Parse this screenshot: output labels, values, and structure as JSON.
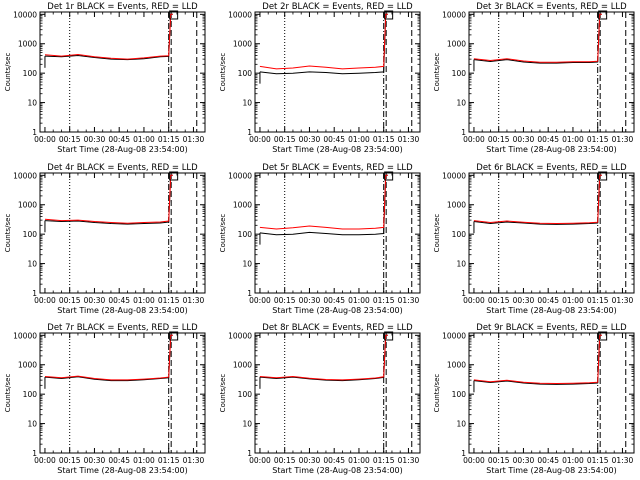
{
  "colors": {
    "background": "#ffffff",
    "axes": "#000000",
    "events": "#000000",
    "lld": "#ff0000"
  },
  "shared": {
    "xlabel": "Start Time (28-Aug-08 23:54:00)",
    "ylabel": "Counts/sec",
    "x_tick_labels": [
      "00:00",
      "00:15",
      "00:30",
      "00:45",
      "01:00",
      "01:15",
      "01:30"
    ],
    "y_tick_labels": [
      "1",
      "10",
      "100",
      "1000",
      "10000"
    ]
  },
  "chart_data": [
    {
      "type": "line",
      "title": "Det 1r BLACK = Events, RED = LLD",
      "xlabel": "Start Time (28-Aug-08 23:54:00)",
      "ylabel": "Counts/sec",
      "x_unit": "minutes",
      "xlim": [
        -3,
        97
      ],
      "ylim": [
        1,
        12000
      ],
      "y_scale": "log",
      "x": [
        0,
        10,
        20,
        30,
        40,
        50,
        60,
        70,
        75
      ],
      "series": [
        {
          "name": "Events",
          "values": [
            380,
            360,
            400,
            340,
            300,
            290,
            310,
            360,
            370
          ],
          "spike_to": 10000
        },
        {
          "name": "LLD",
          "values": [
            420,
            380,
            430,
            360,
            320,
            300,
            330,
            380,
            390
          ],
          "spike_to": 10000
        }
      ],
      "marker_x": 78,
      "vlines": [
        {
          "x": 15,
          "style": "dotted"
        },
        {
          "x": 75,
          "style": "dash-dot"
        },
        {
          "x": 76.5,
          "style": "dashed"
        },
        {
          "x": 92,
          "style": "dashed"
        }
      ]
    },
    {
      "type": "line",
      "title": "Det 2r BLACK = Events, RED = LLD",
      "xlabel": "Start Time (28-Aug-08 23:54:00)",
      "ylabel": "Counts/sec",
      "x_unit": "minutes",
      "xlim": [
        -3,
        97
      ],
      "ylim": [
        1,
        12000
      ],
      "y_scale": "log",
      "x": [
        0,
        10,
        20,
        30,
        40,
        50,
        60,
        70,
        75
      ],
      "series": [
        {
          "name": "Events",
          "values": [
            110,
            95,
            100,
            110,
            105,
            95,
            100,
            105,
            110
          ],
          "spike_to": 10000
        },
        {
          "name": "LLD",
          "values": [
            170,
            140,
            150,
            175,
            160,
            140,
            150,
            160,
            170
          ],
          "spike_to": 10000
        }
      ],
      "marker_x": 78,
      "vlines": [
        {
          "x": 15,
          "style": "dotted"
        },
        {
          "x": 75,
          "style": "dash-dot"
        },
        {
          "x": 76.5,
          "style": "dashed"
        },
        {
          "x": 92,
          "style": "dashed"
        }
      ]
    },
    {
      "type": "line",
      "title": "Det 3r BLACK = Events, RED = LLD",
      "xlabel": "Start Time (28-Aug-08 23:54:00)",
      "ylabel": "Counts/sec",
      "x_unit": "minutes",
      "xlim": [
        -3,
        97
      ],
      "ylim": [
        1,
        12000
      ],
      "y_scale": "log",
      "x": [
        0,
        10,
        20,
        30,
        40,
        50,
        60,
        70,
        75
      ],
      "series": [
        {
          "name": "Events",
          "values": [
            290,
            250,
            290,
            240,
            220,
            220,
            230,
            230,
            240
          ],
          "spike_to": 10000
        },
        {
          "name": "LLD",
          "values": [
            310,
            270,
            310,
            260,
            235,
            235,
            245,
            245,
            255
          ],
          "spike_to": 10000
        }
      ],
      "marker_x": 78,
      "vlines": [
        {
          "x": 15,
          "style": "dotted"
        },
        {
          "x": 75,
          "style": "dash-dot"
        },
        {
          "x": 76.5,
          "style": "dashed"
        },
        {
          "x": 92,
          "style": "dashed"
        }
      ]
    },
    {
      "type": "line",
      "title": "Det 4r BLACK = Events, RED = LLD",
      "xlabel": "Start Time (28-Aug-08 23:54:00)",
      "ylabel": "Counts/sec",
      "x_unit": "minutes",
      "xlim": [
        -3,
        97
      ],
      "ylim": [
        1,
        12000
      ],
      "y_scale": "log",
      "x": [
        0,
        10,
        20,
        30,
        40,
        50,
        60,
        70,
        75
      ],
      "series": [
        {
          "name": "Events",
          "values": [
            290,
            270,
            280,
            250,
            230,
            220,
            230,
            240,
            260
          ],
          "spike_to": 10000
        },
        {
          "name": "LLD",
          "values": [
            320,
            290,
            300,
            270,
            250,
            235,
            250,
            260,
            280
          ],
          "spike_to": 10000
        }
      ],
      "marker_x": 78,
      "vlines": [
        {
          "x": 15,
          "style": "dotted"
        },
        {
          "x": 75,
          "style": "dash-dot"
        },
        {
          "x": 76.5,
          "style": "dashed"
        },
        {
          "x": 92,
          "style": "dashed"
        }
      ]
    },
    {
      "type": "line",
      "title": "Det 5r BLACK = Events, RED = LLD",
      "xlabel": "Start Time (28-Aug-08 23:54:00)",
      "ylabel": "Counts/sec",
      "x_unit": "minutes",
      "xlim": [
        -3,
        97
      ],
      "ylim": [
        1,
        12000
      ],
      "y_scale": "log",
      "x": [
        0,
        10,
        20,
        30,
        40,
        50,
        60,
        70,
        75
      ],
      "series": [
        {
          "name": "Events",
          "values": [
            110,
            95,
            100,
            115,
            105,
            95,
            95,
            100,
            105
          ],
          "spike_to": 10000
        },
        {
          "name": "LLD",
          "values": [
            170,
            150,
            165,
            190,
            170,
            150,
            150,
            160,
            170
          ],
          "spike_to": 10000
        }
      ],
      "marker_x": 78,
      "vlines": [
        {
          "x": 15,
          "style": "dotted"
        },
        {
          "x": 75,
          "style": "dash-dot"
        },
        {
          "x": 76.5,
          "style": "dashed"
        },
        {
          "x": 92,
          "style": "dashed"
        }
      ]
    },
    {
      "type": "line",
      "title": "Det 6r BLACK = Events, RED = LLD",
      "xlabel": "Start Time (28-Aug-08 23:54:00)",
      "ylabel": "Counts/sec",
      "x_unit": "minutes",
      "xlim": [
        -3,
        97
      ],
      "ylim": [
        1,
        12000
      ],
      "y_scale": "log",
      "x": [
        0,
        10,
        20,
        30,
        40,
        50,
        60,
        70,
        75
      ],
      "series": [
        {
          "name": "Events",
          "values": [
            270,
            230,
            260,
            240,
            220,
            215,
            220,
            230,
            240
          ],
          "spike_to": 10000
        },
        {
          "name": "LLD",
          "values": [
            290,
            250,
            280,
            255,
            235,
            230,
            235,
            245,
            255
          ],
          "spike_to": 10000
        }
      ],
      "marker_x": 78,
      "vlines": [
        {
          "x": 15,
          "style": "dotted"
        },
        {
          "x": 75,
          "style": "dash-dot"
        },
        {
          "x": 76.5,
          "style": "dashed"
        },
        {
          "x": 92,
          "style": "dashed"
        }
      ]
    },
    {
      "type": "line",
      "title": "Det 7r BLACK = Events, RED = LLD",
      "xlabel": "Start Time (28-Aug-08 23:54:00)",
      "ylabel": "Counts/sec",
      "x_unit": "minutes",
      "xlim": [
        -3,
        97
      ],
      "ylim": [
        1,
        12000
      ],
      "y_scale": "log",
      "x": [
        0,
        10,
        20,
        30,
        40,
        50,
        60,
        70,
        75
      ],
      "series": [
        {
          "name": "Events",
          "values": [
            380,
            340,
            390,
            320,
            290,
            290,
            310,
            340,
            360
          ],
          "spike_to": 10000
        },
        {
          "name": "LLD",
          "values": [
            400,
            360,
            410,
            340,
            305,
            305,
            325,
            355,
            380
          ],
          "spike_to": 10000
        }
      ],
      "marker_x": 78,
      "vlines": [
        {
          "x": 15,
          "style": "dotted"
        },
        {
          "x": 75,
          "style": "dash-dot"
        },
        {
          "x": 76.5,
          "style": "dashed"
        },
        {
          "x": 92,
          "style": "dashed"
        }
      ]
    },
    {
      "type": "line",
      "title": "Det 8r BLACK = Events, RED = LLD",
      "xlabel": "Start Time (28-Aug-08 23:54:00)",
      "ylabel": "Counts/sec",
      "x_unit": "minutes",
      "xlim": [
        -3,
        97
      ],
      "ylim": [
        1,
        12000
      ],
      "y_scale": "log",
      "x": [
        0,
        10,
        20,
        30,
        40,
        50,
        60,
        70,
        75
      ],
      "series": [
        {
          "name": "Events",
          "values": [
            380,
            340,
            380,
            330,
            300,
            290,
            310,
            340,
            370
          ],
          "spike_to": 10000
        },
        {
          "name": "LLD",
          "values": [
            400,
            360,
            400,
            350,
            315,
            305,
            325,
            355,
            390
          ],
          "spike_to": 10000
        }
      ],
      "marker_x": 78,
      "vlines": [
        {
          "x": 15,
          "style": "dotted"
        },
        {
          "x": 75,
          "style": "dash-dot"
        },
        {
          "x": 76.5,
          "style": "dashed"
        },
        {
          "x": 92,
          "style": "dashed"
        }
      ]
    },
    {
      "type": "line",
      "title": "Det 9r BLACK = Events, RED = LLD",
      "xlabel": "Start Time (28-Aug-08 23:54:00)",
      "ylabel": "Counts/sec",
      "x_unit": "minutes",
      "xlim": [
        -3,
        97
      ],
      "ylim": [
        1,
        12000
      ],
      "y_scale": "log",
      "x": [
        0,
        10,
        20,
        30,
        40,
        50,
        60,
        70,
        75
      ],
      "series": [
        {
          "name": "Events",
          "values": [
            290,
            250,
            280,
            240,
            220,
            215,
            220,
            230,
            240
          ],
          "spike_to": 10000
        },
        {
          "name": "LLD",
          "values": [
            305,
            265,
            295,
            255,
            235,
            230,
            235,
            245,
            255
          ],
          "spike_to": 10000
        }
      ],
      "marker_x": 78,
      "vlines": [
        {
          "x": 15,
          "style": "dotted"
        },
        {
          "x": 75,
          "style": "dash-dot"
        },
        {
          "x": 76.5,
          "style": "dashed"
        },
        {
          "x": 92,
          "style": "dashed"
        }
      ]
    }
  ]
}
